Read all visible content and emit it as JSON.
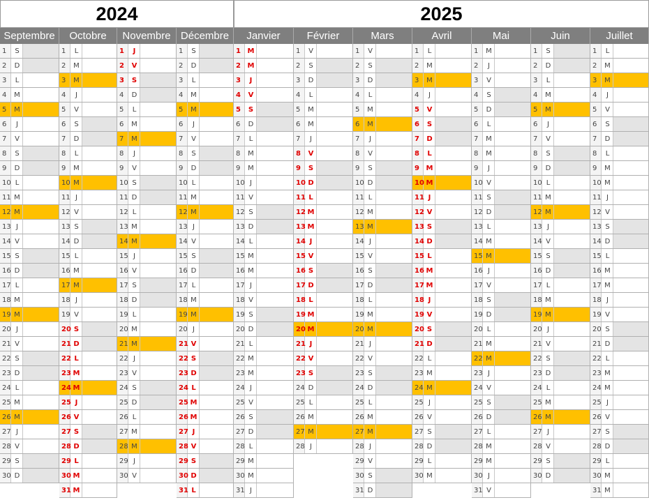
{
  "years": [
    {
      "label": "2024"
    },
    {
      "label": "2025"
    }
  ],
  "weekday_letters": [
    "L",
    "M",
    "M",
    "J",
    "V",
    "S",
    "D"
  ],
  "colors": {
    "highlight": "#ffc000",
    "weekend": "#e4e4e4",
    "header": "#7f7f7f",
    "red_text": "#e00000"
  },
  "months": [
    {
      "name": "Septembre",
      "days": 30,
      "start_weekday": 6,
      "red": false,
      "year": "2024"
    },
    {
      "name": "Octobre",
      "days": 31,
      "start_weekday": 1,
      "red": false,
      "red_from": 20,
      "year": "2024"
    },
    {
      "name": "Novembre",
      "days": 30,
      "start_weekday": 4,
      "red": false,
      "red_to": 3,
      "year": "2024"
    },
    {
      "name": "Décembre",
      "days": 31,
      "start_weekday": 6,
      "red": false,
      "red_from": 21,
      "year": "2024"
    },
    {
      "name": "Janvier",
      "days": 31,
      "start_weekday": 2,
      "red": false,
      "red_to": 5,
      "year": "2025"
    },
    {
      "name": "Février",
      "days": 28,
      "start_weekday": 5,
      "red": false,
      "red_from": 8,
      "red_until": 23,
      "year": "2025"
    },
    {
      "name": "Mars",
      "days": 31,
      "start_weekday": 5,
      "red": false,
      "year": "2025"
    },
    {
      "name": "Avril",
      "days": 30,
      "start_weekday": 1,
      "red": false,
      "red_from": 5,
      "red_until": 21,
      "year": "2025"
    },
    {
      "name": "Mai",
      "days": 31,
      "start_weekday": 3,
      "red": false,
      "year": "2025"
    },
    {
      "name": "Juin",
      "days": 30,
      "start_weekday": 6,
      "red": false,
      "year": "2025"
    },
    {
      "name": "Juillet",
      "days": 31,
      "start_weekday": 1,
      "red": false,
      "year": "2025"
    }
  ],
  "highlights": {
    "Septembre": [
      5,
      12,
      19,
      26
    ],
    "Octobre": [
      3,
      10,
      17,
      24
    ],
    "Novembre": [
      7,
      14,
      21,
      28
    ],
    "Décembre": [
      5,
      12,
      19
    ],
    "Février": [
      20,
      27
    ],
    "Mars": [
      6,
      13,
      20,
      27
    ],
    "Avril": [
      3,
      10,
      24
    ],
    "Mai": [
      15,
      22
    ],
    "Juin": [
      5,
      12,
      19,
      26
    ],
    "Juillet": [
      3
    ]
  }
}
